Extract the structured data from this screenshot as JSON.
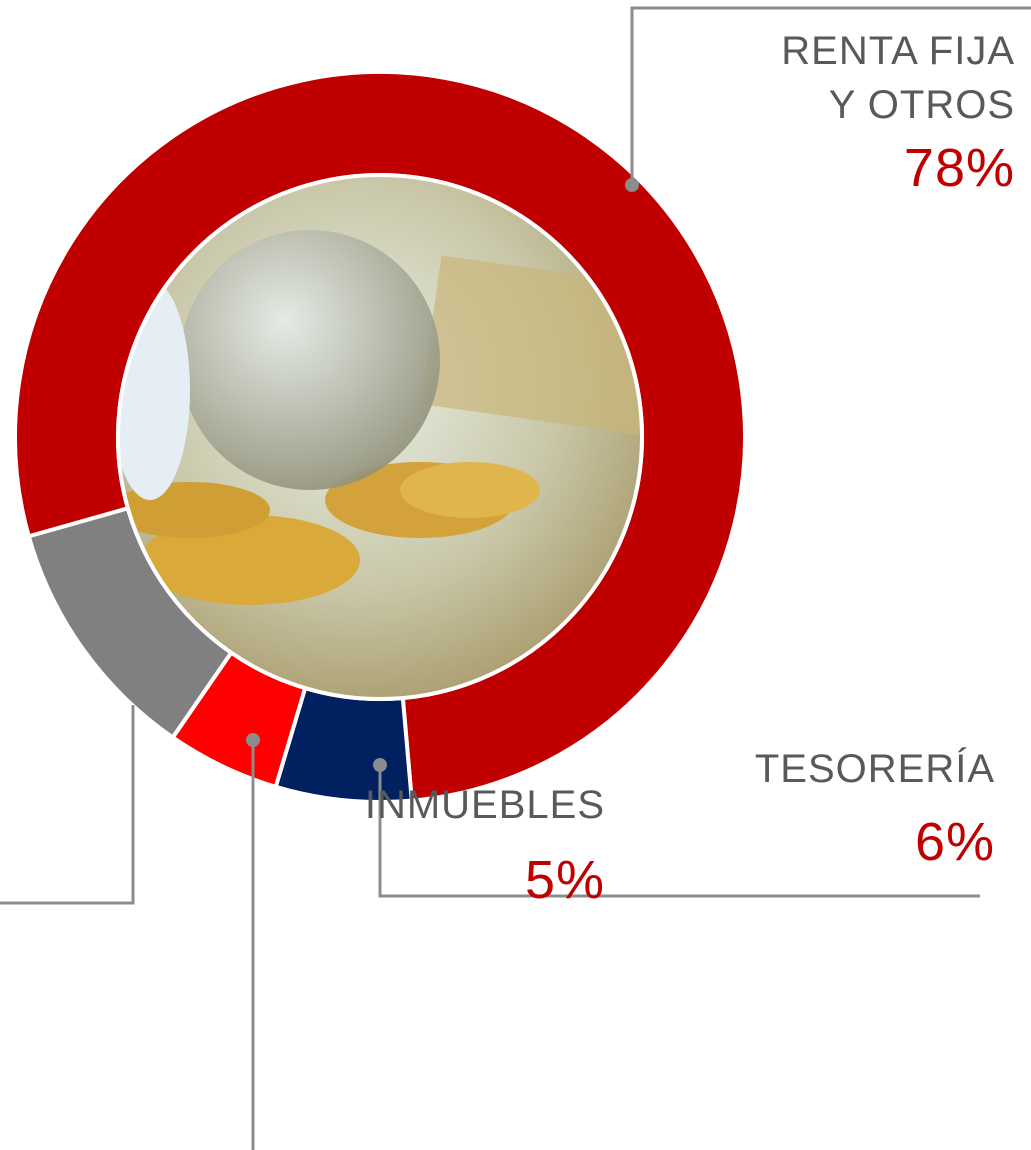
{
  "chart_data": {
    "type": "pie",
    "categories": [
      "RENTA FIJA\nY OTROS",
      "TESORERÍA",
      "INMUEBLES",
      null
    ],
    "values": [
      78,
      6,
      5,
      11
    ],
    "value_labels": [
      "78%",
      "6%",
      "5%",
      null
    ],
    "colors": [
      "#c00000",
      "#002060",
      "#ff0000",
      "#808080"
    ]
  }
}
